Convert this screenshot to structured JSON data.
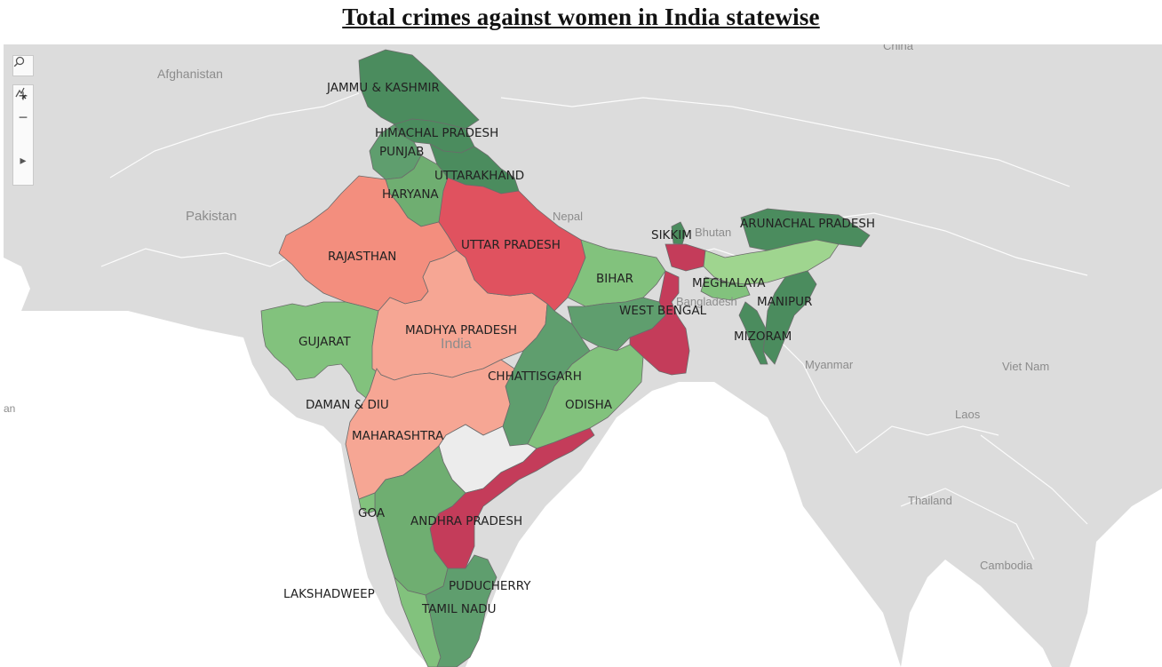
{
  "title": "Total crimes against women in India statewise",
  "colors": {
    "dark_green": "#4b8c5e",
    "mid_green": "#5f9e6e",
    "light_green": "#82c27d",
    "pale_green": "#9fd58f",
    "salmon": "#f38e7e",
    "pale_salmon": "#f6a694",
    "red": "#e0525f",
    "crimson": "#c43c5a",
    "no_data": "#ececec",
    "water": "#ffffff",
    "land": "#dcdcdc"
  },
  "basemap_labels": {
    "afghanistan": "Afghanistan",
    "pakistan": "Pakistan",
    "nepal": "Nepal",
    "bhutan": "Bhutan",
    "bangladesh": "Bangladesh",
    "myanmar": "Myanmar",
    "china": "China",
    "viet_nam": "Viet Nam",
    "laos": "Laos",
    "thailand": "Thailand",
    "cambodia": "Cambodia",
    "india": "India",
    "oman_partial": "an"
  },
  "states": {
    "jk": "JAMMU & KASHMIR",
    "hp": "HIMACHAL PRADESH",
    "pb": "PUNJAB",
    "uk": "UTTARAKHAND",
    "hr": "HARYANA",
    "rj": "RAJASTHAN",
    "up": "UTTAR PRADESH",
    "gj": "GUJARAT",
    "mp": "MADHYA PRADESH",
    "br": "BIHAR",
    "wb": "WEST BENGAL",
    "sk": "SIKKIM",
    "ar": "ARUNACHAL PRADESH",
    "ml": "MEGHALAYA",
    "mn": "MANIPUR",
    "mz": "MIZORAM",
    "cg": "CHHATTISGARH",
    "od": "ODISHA",
    "dd": "DAMAN & DIU",
    "mh": "MAHARASHTRA",
    "ga": "GOA",
    "ap": "ANDHRA PRADESH",
    "ld": "LAKSHADWEEP",
    "py": "PUDUCHERRY",
    "tn": "TAMIL NADU"
  },
  "toolbar": {
    "search_icon": "search-icon",
    "zoom_in": "+",
    "zoom_out": "−",
    "reset_icon": "pin-reset-icon",
    "expand": "▸"
  }
}
